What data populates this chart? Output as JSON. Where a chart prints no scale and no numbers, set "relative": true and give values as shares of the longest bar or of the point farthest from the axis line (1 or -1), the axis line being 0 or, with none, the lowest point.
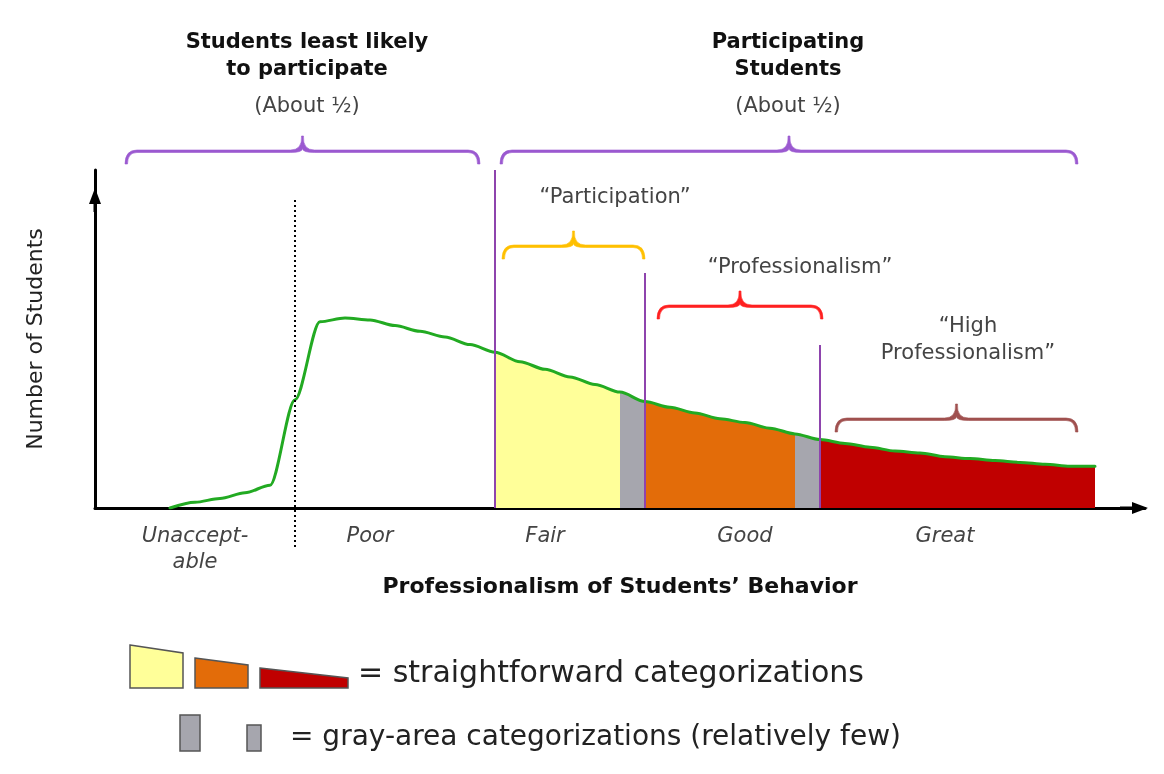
{
  "chart_data": {
    "type": "line",
    "relative": true,
    "xlabel": "Professionalism of Students’ Behavior",
    "ylabel": "Number of Students",
    "categories": [
      null,
      null,
      null,
      null,
      "Unaccept-able",
      null,
      null,
      null,
      null,
      null,
      null,
      "Poor",
      null,
      null,
      null,
      null,
      null,
      null,
      "Fair",
      null,
      null,
      null,
      null,
      null,
      null,
      null,
      "Good",
      null,
      null,
      null,
      null,
      null,
      null,
      null,
      "Great",
      null,
      null,
      null,
      null,
      null,
      null,
      null,
      null
    ],
    "series": [
      {
        "type": "area",
        "color": "#ffff99",
        "values": [
          null,
          null,
          null,
          null,
          null,
          null,
          null,
          null,
          null,
          null,
          null,
          null,
          null,
          null,
          null,
          null,
          0.82,
          0.77,
          0.73,
          0.69,
          0.65,
          0.61,
          null,
          null,
          null,
          null,
          null,
          null,
          null,
          null,
          null,
          null,
          null,
          null,
          null,
          null,
          null,
          null,
          null,
          null,
          null,
          null,
          null
        ]
      },
      {
        "type": "area",
        "color": "#a6a6ae",
        "values": [
          null,
          null,
          null,
          null,
          null,
          null,
          null,
          null,
          null,
          null,
          null,
          null,
          null,
          null,
          null,
          null,
          null,
          null,
          null,
          null,
          null,
          0.61,
          0.56,
          null,
          null,
          null,
          null,
          null,
          null,
          null,
          null,
          null,
          null,
          null,
          null,
          null,
          null,
          null,
          null,
          null,
          null,
          null,
          null
        ]
      },
      {
        "type": "area",
        "color": "#e36c09",
        "values": [
          null,
          null,
          null,
          null,
          null,
          null,
          null,
          null,
          null,
          null,
          null,
          null,
          null,
          null,
          null,
          null,
          null,
          null,
          null,
          null,
          null,
          null,
          0.56,
          0.53,
          0.5,
          0.47,
          0.45,
          0.42,
          0.39,
          null,
          null,
          null,
          null,
          null,
          null,
          null,
          null,
          null,
          null,
          null,
          null,
          null,
          null
        ]
      },
      {
        "type": "area",
        "color": "#a6a6ae",
        "values": [
          null,
          null,
          null,
          null,
          null,
          null,
          null,
          null,
          null,
          null,
          null,
          null,
          null,
          null,
          null,
          null,
          null,
          null,
          null,
          null,
          null,
          null,
          null,
          null,
          null,
          null,
          null,
          null,
          0.39,
          0.36,
          null,
          null,
          null,
          null,
          null,
          null,
          null,
          null,
          null,
          null,
          null,
          null,
          null
        ]
      },
      {
        "type": "area",
        "color": "#c00000",
        "values": [
          null,
          null,
          null,
          null,
          null,
          null,
          null,
          null,
          null,
          null,
          null,
          null,
          null,
          null,
          null,
          null,
          null,
          null,
          null,
          null,
          null,
          null,
          null,
          null,
          null,
          null,
          null,
          null,
          null,
          0.36,
          0.34,
          0.32,
          0.3,
          0.29,
          0.27,
          0.26,
          0.25,
          0.24,
          0.23,
          0.22,
          0.22,
          null,
          null
        ]
      },
      {
        "color": "#22aa22",
        "values": [
          null,
          null,
          null,
          0,
          0.03,
          0.05,
          0.08,
          0.12,
          0.57,
          0.98,
          1,
          0.99,
          0.96,
          0.93,
          0.9,
          0.86,
          0.82,
          0.77,
          0.73,
          0.69,
          0.65,
          0.61,
          0.56,
          0.53,
          0.5,
          0.47,
          0.45,
          0.42,
          0.39,
          0.36,
          0.34,
          0.32,
          0.3,
          0.29,
          0.27,
          0.26,
          0.25,
          0.24,
          0.23,
          0.22,
          0.22,
          null,
          null
        ]
      }
    ],
    "marker": "none",
    "line_style": "solid",
    "annotations": [
      "Students least likely to participate",
      "(About ½)",
      "Participating Students",
      "(About ½)",
      "“Participation”",
      "“Professionalism”",
      "“High Professionalism”",
      "= straightforward categorizations",
      "= gray-area categorizations (relatively few)"
    ]
  }
}
